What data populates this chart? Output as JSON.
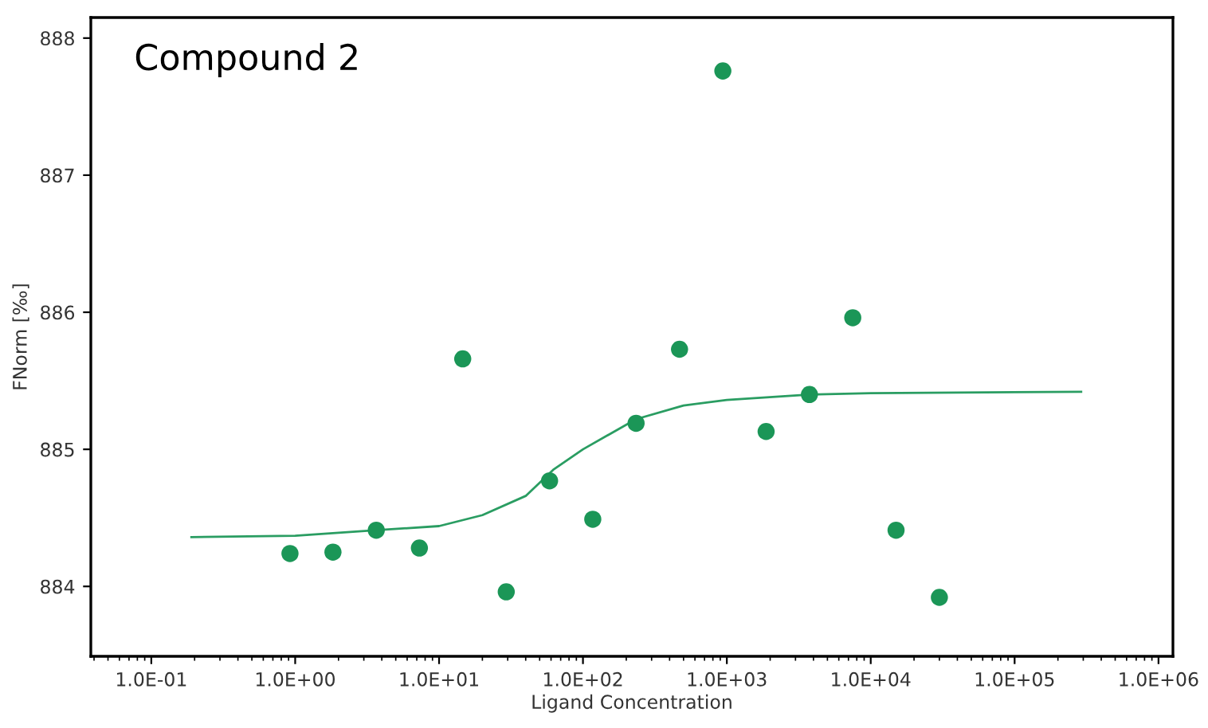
{
  "chart_data": {
    "type": "scatter",
    "title": "Compound 2",
    "xlabel": "Ligand Concentration",
    "ylabel": "FNorm [‰]",
    "log": "x",
    "grid": false,
    "marker": "circle",
    "xlim": [
      0.038,
      1260000
    ],
    "ylim": [
      883.49,
      888.15
    ],
    "xticks": [
      {
        "value": 0.1,
        "label": "1.0E-01"
      },
      {
        "value": 1,
        "label": "1.0E+00"
      },
      {
        "value": 10,
        "label": "1.0E+01"
      },
      {
        "value": 100,
        "label": "1.0E+02"
      },
      {
        "value": 1000,
        "label": "1.0E+03"
      },
      {
        "value": 10000,
        "label": "1.0E+04"
      },
      {
        "value": 100000,
        "label": "1.0E+05"
      },
      {
        "value": 1000000,
        "label": "1.0E+06"
      }
    ],
    "yticks": [
      884,
      885,
      886,
      887,
      888
    ],
    "series": [
      {
        "color": "#1b9657",
        "x": [
          0.92,
          1.83,
          3.66,
          7.3,
          14.6,
          29.3,
          58.6,
          117,
          234,
          469,
          938,
          1875,
          3750,
          7500,
          15000,
          30000
        ],
        "values": [
          884.24,
          884.25,
          884.41,
          884.28,
          885.66,
          883.96,
          884.77,
          884.49,
          885.19,
          885.73,
          887.76,
          885.13,
          885.4,
          885.96,
          884.41,
          883.92
        ]
      },
      {
        "type": "line",
        "color": "#2a9d62",
        "line_style": "solid",
        "marker": "none",
        "x": [
          0.19,
          1,
          3.66,
          10,
          20,
          40,
          62,
          100,
          234,
          500,
          1000,
          3750,
          10000,
          290000
        ],
        "values": [
          884.36,
          884.37,
          884.41,
          884.44,
          884.52,
          884.66,
          884.85,
          885.0,
          885.22,
          885.32,
          885.36,
          885.4,
          885.41,
          885.42
        ]
      }
    ]
  }
}
